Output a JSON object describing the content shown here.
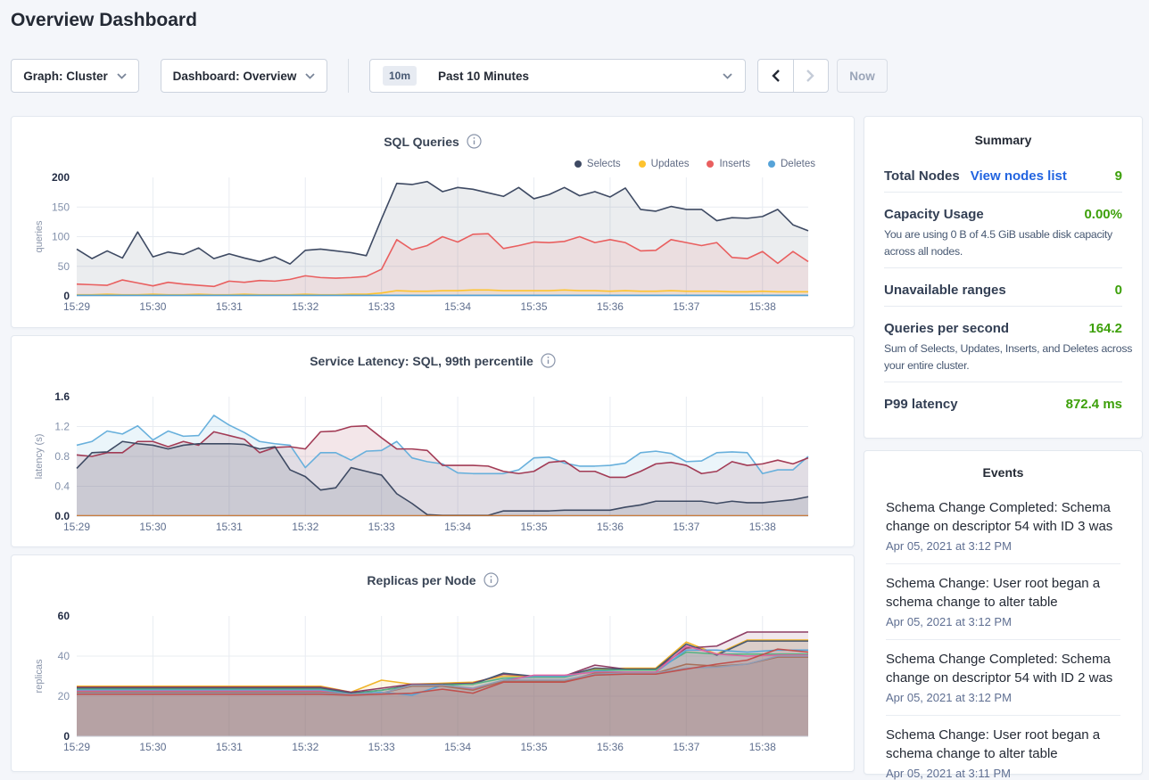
{
  "page": {
    "title": "Overview Dashboard"
  },
  "toolbar": {
    "graph_label": "Graph: Cluster",
    "dashboard_label": "Dashboard: Overview",
    "range_badge": "10m",
    "range_label": "Past 10 Minutes",
    "now_label": "Now"
  },
  "summary": {
    "title": "Summary",
    "total_nodes_label": "Total Nodes",
    "total_nodes_link": "View nodes list",
    "total_nodes_value": "9",
    "capacity_label": "Capacity Usage",
    "capacity_value": "0.00%",
    "capacity_desc": "You are using 0 B of 4.5 GiB usable disk capacity across all nodes.",
    "unavailable_label": "Unavailable ranges",
    "unavailable_value": "0",
    "qps_label": "Queries per second",
    "qps_value": "164.2",
    "qps_desc": "Sum of Selects, Updates, Inserts, and Deletes across your entire cluster.",
    "p99_label": "P99 latency",
    "p99_value": "872.4 ms",
    "accent_green": "#3da00a",
    "link_blue": "#2264e0"
  },
  "events": {
    "title": "Events",
    "items": [
      {
        "text": "Schema Change Completed: Schema change on descriptor 54 with ID 3 was",
        "time": "Apr 05, 2021 at 3:12 PM"
      },
      {
        "text": "Schema Change: User root began a schema change to alter table",
        "time": "Apr 05, 2021 at 3:12 PM"
      },
      {
        "text": "Schema Change Completed: Schema change on descriptor 54 with ID 2 was",
        "time": "Apr 05, 2021 at 3:12 PM"
      },
      {
        "text": "Schema Change: User root began a schema change to alter table",
        "time": "Apr 05, 2021 at 3:11 PM"
      }
    ]
  },
  "chart_data": [
    {
      "type": "area",
      "title": "SQL Queries",
      "ylabel": "queries",
      "ylim": [
        0,
        200
      ],
      "yticks": [
        "0",
        "50",
        "100",
        "150",
        "200"
      ],
      "x_tick_labels": [
        "15:29",
        "15:30",
        "15:31",
        "15:32",
        "15:33",
        "15:34",
        "15:35",
        "15:36",
        "15:37",
        "15:38"
      ],
      "x_span_minutes": 9.6,
      "legend_position": "top-right",
      "series": [
        {
          "name": "Selects",
          "color": "#3e4a63",
          "values": [
            79,
            63,
            76,
            64,
            108,
            66,
            74,
            70,
            81,
            63,
            71,
            64,
            58,
            66,
            54,
            77,
            79,
            76,
            73,
            68,
            130,
            190,
            188,
            193,
            176,
            183,
            180,
            174,
            168,
            183,
            164,
            171,
            183,
            169,
            176,
            167,
            182,
            146,
            143,
            151,
            146,
            146,
            127,
            132,
            131,
            134,
            146,
            120,
            110
          ]
        },
        {
          "name": "Inserts",
          "color": "#e95f5f",
          "values": [
            20,
            19,
            18,
            27,
            22,
            17,
            23,
            20,
            18,
            16,
            25,
            23,
            26,
            25,
            28,
            34,
            31,
            30,
            31,
            33,
            45,
            95,
            78,
            85,
            100,
            91,
            104,
            105,
            80,
            85,
            91,
            90,
            92,
            100,
            90,
            95,
            90,
            76,
            77,
            95,
            90,
            85,
            90,
            65,
            63,
            75,
            55,
            75,
            58
          ]
        },
        {
          "name": "Updates",
          "color": "#fec32e",
          "values": [
            2,
            2,
            3,
            2,
            2,
            3,
            2,
            2,
            3,
            2,
            2,
            3,
            2,
            2,
            2,
            3,
            2,
            2,
            3,
            3,
            5,
            9,
            8,
            8,
            9,
            9,
            10,
            10,
            9,
            9,
            9,
            9,
            10,
            9,
            9,
            8,
            9,
            8,
            8,
            9,
            8,
            8,
            8,
            7,
            7,
            8,
            7,
            7,
            7
          ]
        },
        {
          "name": "Deletes",
          "color": "#56a3d8",
          "values": [
            1,
            1,
            1,
            1,
            1,
            1,
            1,
            1,
            1,
            1,
            1,
            1,
            1,
            1,
            1,
            1,
            1,
            1,
            1,
            1,
            1,
            1,
            1,
            1,
            1,
            1,
            1,
            1,
            1,
            1,
            1,
            1,
            1,
            1,
            1,
            1,
            1,
            1,
            1,
            1,
            1,
            1,
            1,
            1,
            1,
            1,
            1,
            1,
            1
          ]
        }
      ],
      "legend_order": [
        "Selects",
        "Updates",
        "Inserts",
        "Deletes"
      ]
    },
    {
      "type": "area",
      "title": "Service Latency: SQL, 99th percentile",
      "ylabel": "latency (s)",
      "ylim": [
        0,
        1.6
      ],
      "yticks": [
        "0.0",
        "0.4",
        "0.8",
        "1.2",
        "1.6"
      ],
      "x_tick_labels": [
        "15:29",
        "15:30",
        "15:31",
        "15:32",
        "15:33",
        "15:34",
        "15:35",
        "15:36",
        "15:37",
        "15:38"
      ],
      "x_span_minutes": 9.6,
      "series": [
        {
          "color": "#68b0dc",
          "values": [
            0.95,
            1.0,
            1.14,
            1.1,
            1.21,
            1.02,
            1.14,
            1.07,
            1.08,
            1.35,
            1.22,
            1.12,
            1.0,
            0.97,
            0.95,
            0.65,
            0.85,
            0.85,
            0.75,
            0.87,
            0.88,
            1.0,
            0.78,
            0.73,
            0.7,
            0.58,
            0.57,
            0.57,
            0.57,
            0.62,
            0.78,
            0.79,
            0.71,
            0.67,
            0.67,
            0.68,
            0.71,
            0.85,
            0.87,
            0.84,
            0.73,
            0.74,
            0.85,
            0.86,
            0.85,
            0.57,
            0.62,
            0.62,
            0.8
          ]
        },
        {
          "color": "#a23b55",
          "values": [
            0.82,
            0.8,
            0.85,
            0.85,
            1.0,
            1.0,
            0.93,
            1.0,
            0.95,
            1.13,
            1.08,
            1.03,
            0.85,
            0.92,
            0.93,
            0.9,
            1.13,
            1.14,
            1.2,
            1.21,
            1.05,
            0.9,
            0.9,
            0.88,
            0.68,
            0.68,
            0.68,
            0.67,
            0.6,
            0.57,
            0.6,
            0.72,
            0.74,
            0.6,
            0.6,
            0.52,
            0.52,
            0.6,
            0.7,
            0.72,
            0.68,
            0.57,
            0.6,
            0.73,
            0.68,
            0.7,
            0.75,
            0.7,
            0.78
          ]
        },
        {
          "color": "#3e4a63",
          "values": [
            0.64,
            0.85,
            0.86,
            1.0,
            0.97,
            0.95,
            0.9,
            0.95,
            0.97,
            0.97,
            0.97,
            0.96,
            0.9,
            0.93,
            0.62,
            0.53,
            0.35,
            0.38,
            0.65,
            0.6,
            0.55,
            0.3,
            0.17,
            0.02,
            0.01,
            0.01,
            0.01,
            0.01,
            0.07,
            0.07,
            0.07,
            0.07,
            0.08,
            0.08,
            0.08,
            0.08,
            0.12,
            0.15,
            0.2,
            0.2,
            0.2,
            0.2,
            0.17,
            0.2,
            0.18,
            0.18,
            0.2,
            0.22,
            0.26
          ]
        },
        {
          "color": "#c77129",
          "values": [
            0.008,
            0.008,
            0.008,
            0.008,
            0.008,
            0.008,
            0.008,
            0.008,
            0.008,
            0.008,
            0.008,
            0.008,
            0.008,
            0.008,
            0.008,
            0.008,
            0.008,
            0.008,
            0.008,
            0.008,
            0.008,
            0.008,
            0.008,
            0.008,
            0.008,
            0.008,
            0.008,
            0.008,
            0.008,
            0.008,
            0.008,
            0.008,
            0.008,
            0.008,
            0.008,
            0.008,
            0.008,
            0.008,
            0.008,
            0.008,
            0.008,
            0.008,
            0.008,
            0.008,
            0.008,
            0.008,
            0.008,
            0.008,
            0.008
          ]
        }
      ]
    },
    {
      "type": "area",
      "title": "Replicas per Node",
      "ylabel": "replicas",
      "ylim": [
        0,
        60
      ],
      "yticks": [
        "0",
        "20",
        "40",
        "60"
      ],
      "x_tick_labels": [
        "15:29",
        "15:30",
        "15:31",
        "15:32",
        "15:33",
        "15:34",
        "15:35",
        "15:36",
        "15:37",
        "15:38"
      ],
      "x_span_minutes": 9.6,
      "series": [
        {
          "color": "#f0b429",
          "values": [
            25,
            25,
            25,
            25,
            25,
            25,
            25,
            25,
            25,
            22,
            28,
            26,
            26.5,
            27,
            30,
            30,
            30,
            33.5,
            34,
            34,
            47,
            41,
            48,
            48,
            48
          ]
        },
        {
          "color": "#8e3d64",
          "values": [
            24.5,
            24.5,
            24.5,
            24.5,
            24.5,
            24.5,
            24.5,
            24.5,
            24.5,
            22,
            24,
            26,
            26,
            26.5,
            31,
            30,
            30,
            35.5,
            33.5,
            33.5,
            44,
            45,
            52,
            52,
            52
          ]
        },
        {
          "color": "#475872",
          "values": [
            24,
            24,
            24,
            24,
            24,
            24,
            24,
            24,
            24,
            21.5,
            23,
            25.5,
            26,
            26,
            31.5,
            30,
            30,
            34,
            33.5,
            33.5,
            46,
            40.5,
            47.5,
            47.5,
            47.5
          ]
        },
        {
          "color": "#56b381",
          "values": [
            23.5,
            23.5,
            23.5,
            23.5,
            23.5,
            23.5,
            23.5,
            23.5,
            23.5,
            21,
            23,
            25,
            25.5,
            26,
            29,
            29.5,
            29.5,
            33,
            33,
            33,
            42,
            41,
            41,
            41,
            41
          ]
        },
        {
          "color": "#56a3d8",
          "values": [
            23,
            23,
            23,
            23,
            23,
            23,
            23,
            23,
            23,
            21,
            22,
            20.5,
            25.5,
            23.5,
            28,
            30,
            30,
            32.5,
            32,
            32,
            43,
            43,
            42,
            43,
            43
          ]
        },
        {
          "color": "#df64a0",
          "values": [
            22.5,
            22.5,
            22.5,
            22.5,
            22.5,
            22.5,
            22.5,
            22.5,
            22.5,
            20.5,
            21.5,
            25.5,
            25.5,
            23.5,
            27.5,
            30.5,
            30.5,
            32,
            32,
            32,
            45,
            41,
            40,
            40.5,
            40.5
          ]
        },
        {
          "color": "#a8705a",
          "values": [
            22,
            22,
            22,
            22,
            22,
            22,
            22,
            22,
            22,
            21,
            21.5,
            25,
            25,
            23,
            27.5,
            27.5,
            27.5,
            31.5,
            31.5,
            31.5,
            36,
            35,
            36,
            39.5,
            39.5
          ]
        },
        {
          "color": "#8f9bb3",
          "values": [
            21.5,
            21.5,
            21.5,
            21.5,
            21.5,
            21.5,
            21.5,
            21.5,
            21.5,
            21,
            21.5,
            25.5,
            25.5,
            24,
            28,
            28,
            28,
            31,
            31.5,
            31.5,
            34,
            34.5,
            36,
            40,
            40
          ]
        },
        {
          "color": "#c0504d",
          "values": [
            21,
            21,
            21,
            21,
            21,
            21,
            21,
            21,
            21,
            20.5,
            21,
            21.5,
            23.5,
            21.5,
            27,
            27,
            27,
            30.5,
            31,
            31,
            33.5,
            36,
            38,
            43.5,
            42
          ]
        }
      ]
    }
  ]
}
